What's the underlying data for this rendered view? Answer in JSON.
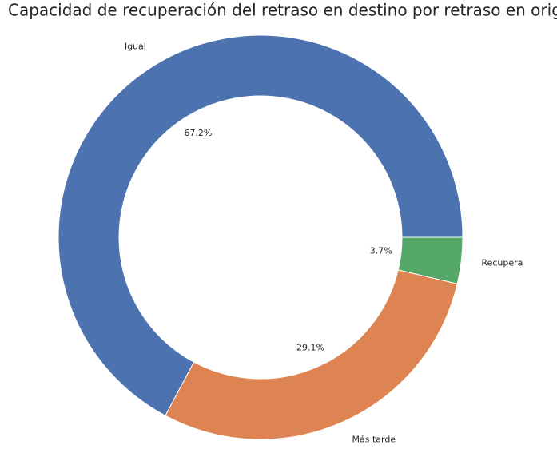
{
  "chart_data": {
    "type": "donut",
    "title": "Capacidad de recuperación del retraso en destino por retraso en origen",
    "categories": [
      "Igual",
      "Más tarde",
      "Recupera"
    ],
    "values": [
      67.2,
      29.1,
      3.7
    ],
    "value_labels": [
      "67.2%",
      "29.1%",
      "3.7%"
    ],
    "colors": [
      "#4c72b0",
      "#dd8452",
      "#55a868"
    ]
  }
}
